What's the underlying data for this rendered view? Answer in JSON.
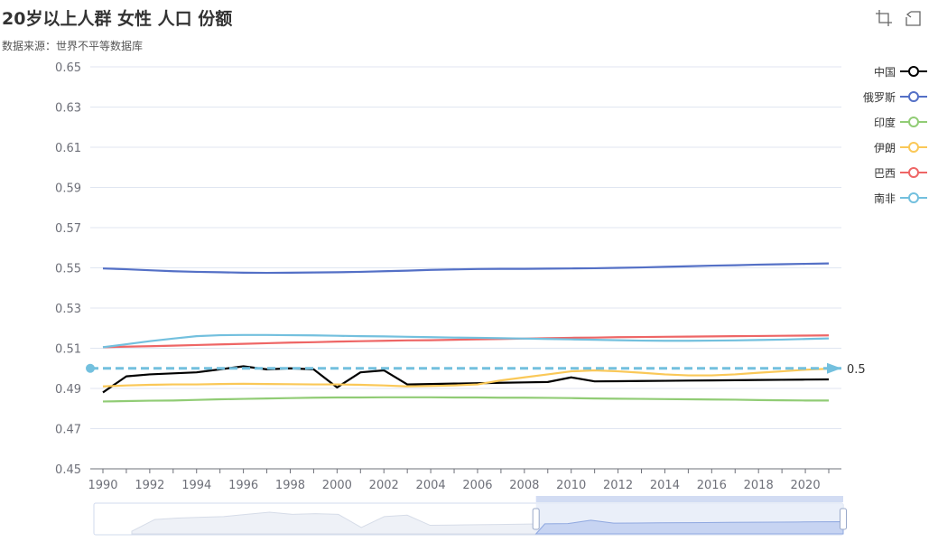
{
  "title": "20岁以上人群 女性 人口 份额",
  "subtitle": "数据来源：世界不平等数据库",
  "toolbox": {
    "items": [
      {
        "name": "zoom-icon"
      },
      {
        "name": "zoom-reset-icon"
      }
    ]
  },
  "legend": {
    "placement": "right",
    "items": [
      "中国",
      "俄罗斯",
      "印度",
      "伊朗",
      "巴西",
      "南非"
    ]
  },
  "colors": {
    "中国": "#000000",
    "俄罗斯": "#5470c6",
    "印度": "#91cc75",
    "伊朗": "#fac858",
    "巴西": "#ee6666",
    "南非": "#73c0de",
    "axis": "#6e7079",
    "grid": "#e0e6f1",
    "markline": "#73c0de",
    "zoom_fill": "#e6ecf8",
    "zoom_border": "#d2dbee"
  },
  "chart_data": {
    "type": "line",
    "title": "20岁以上人群 女性 人口 份额",
    "xlabel": "",
    "ylabel": "",
    "x": [
      1990,
      1991,
      1992,
      1993,
      1994,
      1995,
      1996,
      1997,
      1998,
      1999,
      2000,
      2001,
      2002,
      2003,
      2004,
      2005,
      2006,
      2007,
      2008,
      2009,
      2010,
      2011,
      2012,
      2013,
      2014,
      2015,
      2016,
      2017,
      2018,
      2019,
      2020,
      2021
    ],
    "xticks": [
      "1990",
      "1992",
      "1994",
      "1996",
      "1998",
      "2000",
      "2002",
      "2004",
      "2006",
      "2008",
      "2010",
      "2012",
      "2014",
      "2016",
      "2018",
      "2020"
    ],
    "ylim": [
      0.45,
      0.65
    ],
    "yticks": [
      "0.45",
      "0.47",
      "0.49",
      "0.51",
      "0.53",
      "0.55",
      "0.57",
      "0.59",
      "0.61",
      "0.63",
      "0.65"
    ],
    "grid": true,
    "series": [
      {
        "name": "中国",
        "values": [
          0.488,
          0.496,
          0.497,
          0.4975,
          0.498,
          0.4995,
          0.501,
          0.4995,
          0.5,
          0.4995,
          0.4905,
          0.498,
          0.499,
          0.492,
          0.4922,
          0.4924,
          0.4926,
          0.4928,
          0.493,
          0.4932,
          0.4955,
          0.4935,
          0.4936,
          0.4937,
          0.4938,
          0.4939,
          0.494,
          0.4941,
          0.4942,
          0.4943,
          0.4944,
          0.4945
        ]
      },
      {
        "name": "俄罗斯",
        "values": [
          0.5497,
          0.5493,
          0.5488,
          0.5483,
          0.548,
          0.5478,
          0.5476,
          0.5475,
          0.5476,
          0.5477,
          0.5478,
          0.548,
          0.5483,
          0.5486,
          0.549,
          0.5492,
          0.5494,
          0.5495,
          0.5495,
          0.5496,
          0.5497,
          0.5498,
          0.55,
          0.5502,
          0.5505,
          0.5508,
          0.5511,
          0.5513,
          0.5516,
          0.5518,
          0.552,
          0.5522
        ]
      },
      {
        "name": "印度",
        "values": [
          0.4835,
          0.4837,
          0.4839,
          0.484,
          0.4843,
          0.4846,
          0.4848,
          0.485,
          0.4852,
          0.4854,
          0.4855,
          0.4855,
          0.4856,
          0.4856,
          0.4856,
          0.4855,
          0.4855,
          0.4854,
          0.4854,
          0.4853,
          0.4852,
          0.485,
          0.4849,
          0.4848,
          0.4847,
          0.4846,
          0.4845,
          0.4844,
          0.4842,
          0.4841,
          0.484,
          0.484
        ]
      },
      {
        "name": "伊朗",
        "values": [
          0.491,
          0.4915,
          0.4918,
          0.492,
          0.492,
          0.4922,
          0.4923,
          0.4922,
          0.4921,
          0.492,
          0.492,
          0.4918,
          0.4915,
          0.491,
          0.4912,
          0.4915,
          0.492,
          0.494,
          0.4955,
          0.497,
          0.4985,
          0.499,
          0.4985,
          0.4978,
          0.497,
          0.4965,
          0.4965,
          0.497,
          0.4978,
          0.4985,
          0.4993,
          0.4998
        ]
      },
      {
        "name": "巴西",
        "values": [
          0.5105,
          0.5108,
          0.511,
          0.5113,
          0.5116,
          0.5119,
          0.5122,
          0.5125,
          0.5128,
          0.513,
          0.5133,
          0.5135,
          0.5137,
          0.5139,
          0.514,
          0.5142,
          0.5144,
          0.5146,
          0.5148,
          0.515,
          0.5152,
          0.5153,
          0.5155,
          0.5156,
          0.5157,
          0.5158,
          0.5159,
          0.516,
          0.5161,
          0.5162,
          0.5163,
          0.5164
        ]
      },
      {
        "name": "南非",
        "values": [
          0.5105,
          0.512,
          0.5135,
          0.5148,
          0.516,
          0.5165,
          0.5166,
          0.5166,
          0.5165,
          0.5164,
          0.5162,
          0.516,
          0.5159,
          0.5157,
          0.5155,
          0.5153,
          0.5152,
          0.515,
          0.5148,
          0.5146,
          0.5144,
          0.5142,
          0.514,
          0.5138,
          0.5137,
          0.5137,
          0.5138,
          0.5139,
          0.5141,
          0.5143,
          0.5146,
          0.5149
        ]
      }
    ],
    "markline": {
      "value": 0.5,
      "label": "0.5"
    },
    "datazoom": {
      "start_percent": 59,
      "end_percent": 100
    }
  }
}
